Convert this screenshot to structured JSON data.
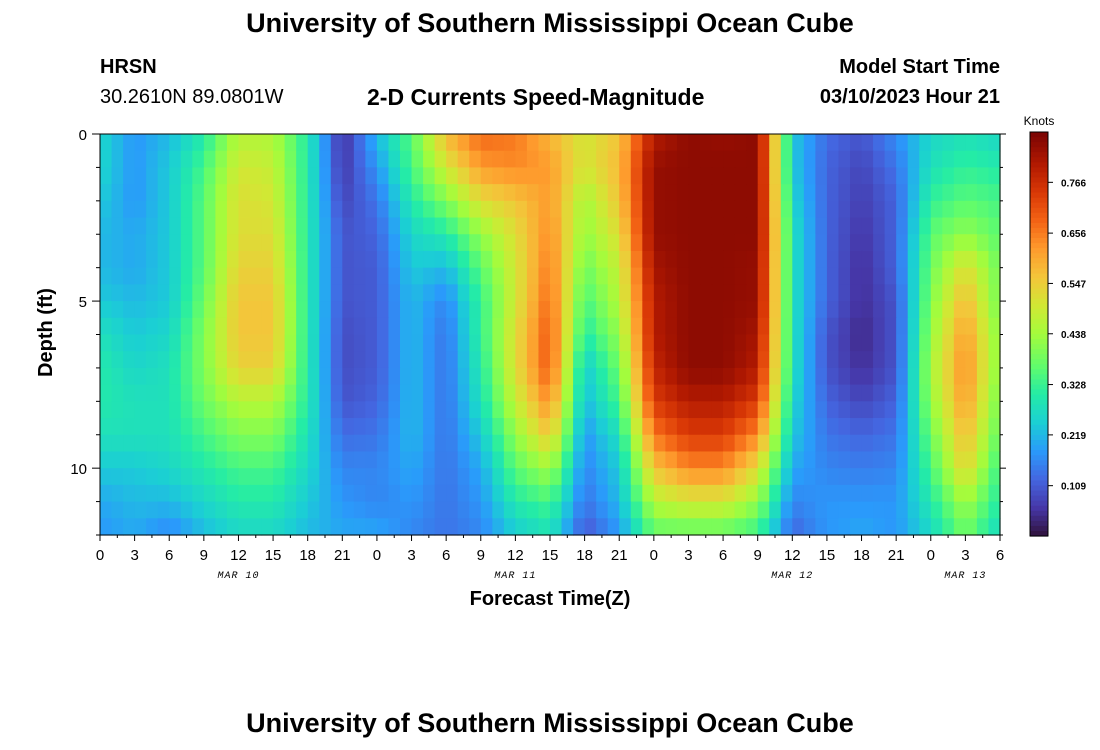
{
  "page": {
    "title": "University of Southern Mississippi Ocean Cube",
    "footer_title": "University of Southern Mississippi Ocean Cube",
    "station": "HRSN",
    "coords": "30.2610N  89.0801W",
    "model_label": "Model Start Time",
    "model_time": "03/10/2023 Hour 21"
  },
  "chart_data": {
    "type": "heatmap",
    "title": "2-D Currents Speed-Magnitude",
    "xlabel": "Forecast Time(Z)",
    "ylabel": "Depth (ft)",
    "x_ticks": [
      "0",
      "3",
      "6",
      "9",
      "12",
      "15",
      "18",
      "21",
      "0",
      "3",
      "6",
      "9",
      "12",
      "15",
      "18",
      "21",
      "0",
      "3",
      "6",
      "9",
      "12",
      "15",
      "18",
      "21",
      "0",
      "3",
      "6"
    ],
    "date_labels": [
      {
        "label": "MAR 10",
        "tick_index": 4
      },
      {
        "label": "MAR 11",
        "tick_index": 12
      },
      {
        "label": "MAR 12",
        "tick_index": 20
      },
      {
        "label": "MAR 13",
        "tick_index": 25
      }
    ],
    "y_ticks": [
      "0",
      "5",
      "10"
    ],
    "ylim": [
      0,
      12
    ],
    "colorbar": {
      "unit": "Knots",
      "ticks": [
        "0.766",
        "0.656",
        "0.547",
        "0.438",
        "0.328",
        "0.219",
        "0.109"
      ],
      "range": [
        0,
        0.875
      ]
    },
    "time_hours": [
      0,
      3,
      6,
      9,
      12,
      15,
      18,
      21,
      24,
      27,
      30,
      33,
      36,
      39,
      42,
      45,
      48,
      51,
      54,
      57,
      60,
      63,
      66,
      69,
      72,
      75,
      78
    ],
    "depths_ft": [
      0,
      1,
      2,
      3,
      4,
      5,
      6,
      7,
      8,
      9,
      10,
      11,
      12
    ],
    "speed_knots": [
      [
        0.26,
        0.18,
        0.22,
        0.3,
        0.46,
        0.45,
        0.3,
        0.05,
        0.22,
        0.36,
        0.58,
        0.68,
        0.66,
        0.58,
        0.5,
        0.56,
        0.8,
        0.85,
        0.84,
        0.85,
        0.24,
        0.13,
        0.1,
        0.17,
        0.26,
        0.28,
        0.26
      ],
      [
        0.26,
        0.18,
        0.24,
        0.34,
        0.5,
        0.48,
        0.3,
        0.06,
        0.18,
        0.34,
        0.5,
        0.62,
        0.64,
        0.62,
        0.5,
        0.58,
        0.84,
        0.85,
        0.85,
        0.85,
        0.24,
        0.12,
        0.08,
        0.14,
        0.28,
        0.32,
        0.3
      ],
      [
        0.24,
        0.18,
        0.24,
        0.36,
        0.52,
        0.5,
        0.3,
        0.08,
        0.14,
        0.3,
        0.4,
        0.52,
        0.56,
        0.62,
        0.44,
        0.56,
        0.84,
        0.85,
        0.85,
        0.85,
        0.26,
        0.12,
        0.07,
        0.12,
        0.32,
        0.36,
        0.34
      ],
      [
        0.22,
        0.2,
        0.24,
        0.36,
        0.52,
        0.52,
        0.3,
        0.1,
        0.12,
        0.26,
        0.3,
        0.42,
        0.52,
        0.64,
        0.42,
        0.52,
        0.84,
        0.85,
        0.85,
        0.85,
        0.28,
        0.12,
        0.06,
        0.12,
        0.36,
        0.42,
        0.36
      ],
      [
        0.22,
        0.2,
        0.24,
        0.36,
        0.54,
        0.54,
        0.3,
        0.1,
        0.11,
        0.24,
        0.22,
        0.36,
        0.5,
        0.66,
        0.38,
        0.48,
        0.82,
        0.85,
        0.85,
        0.84,
        0.28,
        0.12,
        0.05,
        0.12,
        0.38,
        0.52,
        0.38
      ],
      [
        0.24,
        0.22,
        0.24,
        0.38,
        0.56,
        0.56,
        0.3,
        0.1,
        0.11,
        0.22,
        0.16,
        0.32,
        0.5,
        0.68,
        0.34,
        0.46,
        0.8,
        0.85,
        0.85,
        0.84,
        0.28,
        0.12,
        0.05,
        0.1,
        0.4,
        0.58,
        0.38
      ],
      [
        0.28,
        0.24,
        0.26,
        0.4,
        0.56,
        0.56,
        0.3,
        0.09,
        0.11,
        0.22,
        0.14,
        0.32,
        0.52,
        0.7,
        0.3,
        0.42,
        0.8,
        0.85,
        0.85,
        0.82,
        0.28,
        0.1,
        0.04,
        0.1,
        0.42,
        0.62,
        0.4
      ],
      [
        0.3,
        0.26,
        0.28,
        0.4,
        0.54,
        0.54,
        0.3,
        0.09,
        0.11,
        0.22,
        0.14,
        0.3,
        0.52,
        0.7,
        0.24,
        0.38,
        0.78,
        0.85,
        0.85,
        0.8,
        0.28,
        0.1,
        0.05,
        0.1,
        0.44,
        0.64,
        0.4
      ],
      [
        0.3,
        0.28,
        0.28,
        0.38,
        0.46,
        0.46,
        0.3,
        0.1,
        0.12,
        0.22,
        0.14,
        0.28,
        0.48,
        0.64,
        0.22,
        0.34,
        0.74,
        0.8,
        0.8,
        0.74,
        0.26,
        0.12,
        0.08,
        0.12,
        0.42,
        0.62,
        0.38
      ],
      [
        0.28,
        0.28,
        0.28,
        0.34,
        0.4,
        0.4,
        0.28,
        0.13,
        0.14,
        0.22,
        0.14,
        0.24,
        0.42,
        0.56,
        0.18,
        0.28,
        0.66,
        0.74,
        0.74,
        0.64,
        0.24,
        0.14,
        0.12,
        0.14,
        0.38,
        0.58,
        0.36
      ],
      [
        0.24,
        0.24,
        0.26,
        0.3,
        0.34,
        0.34,
        0.26,
        0.16,
        0.16,
        0.2,
        0.14,
        0.2,
        0.36,
        0.44,
        0.16,
        0.24,
        0.56,
        0.64,
        0.64,
        0.52,
        0.2,
        0.16,
        0.15,
        0.16,
        0.34,
        0.54,
        0.32
      ],
      [
        0.2,
        0.22,
        0.22,
        0.26,
        0.3,
        0.3,
        0.24,
        0.18,
        0.16,
        0.18,
        0.14,
        0.18,
        0.3,
        0.34,
        0.14,
        0.22,
        0.46,
        0.5,
        0.5,
        0.42,
        0.16,
        0.18,
        0.18,
        0.18,
        0.3,
        0.44,
        0.3
      ],
      [
        0.18,
        0.2,
        0.16,
        0.22,
        0.26,
        0.26,
        0.22,
        0.2,
        0.2,
        0.16,
        0.14,
        0.16,
        0.24,
        0.28,
        0.1,
        0.18,
        0.36,
        0.36,
        0.36,
        0.32,
        0.12,
        0.18,
        0.2,
        0.18,
        0.26,
        0.38,
        0.26
      ]
    ]
  }
}
